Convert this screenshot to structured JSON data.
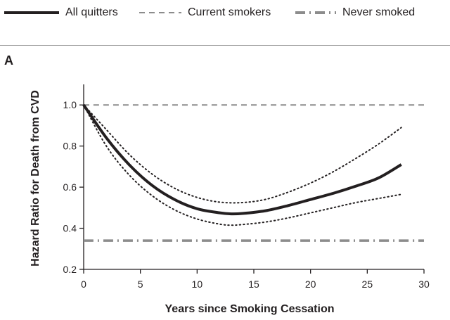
{
  "legend": {
    "all_quitters": "All quitters",
    "current_smokers": "Current smokers",
    "never_smoked": "Never smoked"
  },
  "panel_label": "A",
  "colors": {
    "solid": "#231f20",
    "current": "#8c8c8c",
    "never": "#8c8c8c",
    "ci": "#231f20",
    "axis": "#231f20"
  },
  "chart_data": {
    "type": "line",
    "xlabel": "Years since Smoking Cessation",
    "ylabel": "Hazard Ratio for Death from CVD",
    "xlim": [
      0,
      30
    ],
    "ylim": [
      0.2,
      1.1
    ],
    "xticks": [
      0,
      5,
      10,
      15,
      20,
      25,
      30
    ],
    "yticks": [
      0.2,
      0.4,
      0.6,
      0.8,
      1.0
    ],
    "ytick_labels": [
      "0.2",
      "0.4",
      "0.6",
      "0.8",
      "1.0"
    ],
    "grid": false,
    "legend_position": "top",
    "series": [
      {
        "name": "All quitters",
        "style": "solid",
        "x": [
          0,
          2,
          4,
          6,
          8,
          10,
          12,
          13,
          14,
          16,
          18,
          20,
          22,
          24,
          26,
          28
        ],
        "y": [
          1.0,
          0.84,
          0.71,
          0.61,
          0.54,
          0.495,
          0.475,
          0.47,
          0.472,
          0.485,
          0.51,
          0.54,
          0.57,
          0.605,
          0.645,
          0.71
        ]
      },
      {
        "name": "",
        "style": "dotted",
        "role": "upper confidence bound",
        "x": [
          0,
          2,
          4,
          6,
          8,
          10,
          12,
          14,
          16,
          18,
          20,
          22,
          24,
          26,
          28
        ],
        "y": [
          1.0,
          0.88,
          0.76,
          0.665,
          0.595,
          0.55,
          0.527,
          0.525,
          0.54,
          0.575,
          0.62,
          0.675,
          0.74,
          0.81,
          0.89
        ]
      },
      {
        "name": "",
        "style": "dotted",
        "role": "lower confidence bound",
        "x": [
          0,
          2,
          4,
          6,
          8,
          10,
          12,
          13,
          14,
          16,
          18,
          20,
          22,
          24,
          26,
          28
        ],
        "y": [
          1.0,
          0.8,
          0.66,
          0.56,
          0.49,
          0.445,
          0.42,
          0.415,
          0.418,
          0.43,
          0.45,
          0.475,
          0.5,
          0.525,
          0.545,
          0.565
        ]
      },
      {
        "name": "Current smokers",
        "style": "dashed",
        "x": [
          0,
          30
        ],
        "y": [
          1.0,
          1.0
        ]
      },
      {
        "name": "Never smoked",
        "style": "dash-dot",
        "x": [
          0,
          30
        ],
        "y": [
          0.34,
          0.34
        ]
      }
    ]
  }
}
